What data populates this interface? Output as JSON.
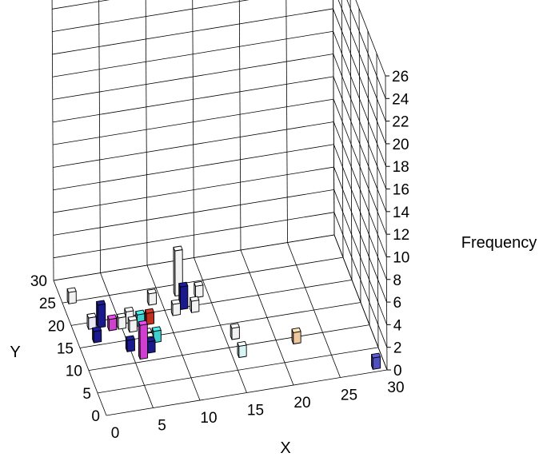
{
  "chart_data": {
    "type": "bar3d",
    "title": "",
    "xlabel": "X",
    "ylabel": "Y",
    "zlabel": "Frequency",
    "xlim": [
      0,
      30
    ],
    "ylim": [
      0,
      30
    ],
    "zlim": [
      0,
      26
    ],
    "x_ticks": [
      "0",
      "5",
      "10",
      "15",
      "20",
      "25",
      "30"
    ],
    "y_ticks": [
      "0",
      "5",
      "10",
      "15",
      "20",
      "25",
      "30"
    ],
    "z_ticks": [
      "0",
      "2",
      "4",
      "6",
      "8",
      "10",
      "12",
      "14",
      "16",
      "18",
      "20",
      "22",
      "24",
      "26"
    ],
    "grid": true,
    "bars": [
      {
        "x": 1,
        "y": 25,
        "z": 1,
        "color": "#f2f2f2"
      },
      {
        "x": 2,
        "y": 16,
        "z": 1,
        "color": "#1a1a8c"
      },
      {
        "x": 3,
        "y": 19,
        "z": 2,
        "color": "#1a1a8c"
      },
      {
        "x": 2,
        "y": 19,
        "z": 1,
        "color": "#e8e8f8"
      },
      {
        "x": 4,
        "y": 18,
        "z": 1,
        "color": "#d040d0"
      },
      {
        "x": 5,
        "y": 18,
        "z": 1,
        "color": "#f2f2f2"
      },
      {
        "x": 6,
        "y": 19,
        "z": 1,
        "color": "#f2f2f2"
      },
      {
        "x": 6,
        "y": 17,
        "z": 1,
        "color": "#f2f2f2"
      },
      {
        "x": 7,
        "y": 18,
        "z": 1,
        "color": "#40d0d0"
      },
      {
        "x": 8,
        "y": 18,
        "z": 1,
        "color": "#c03020"
      },
      {
        "x": 5,
        "y": 13,
        "z": 1,
        "color": "#1a1a8c"
      },
      {
        "x": 6,
        "y": 11,
        "z": 3,
        "color": "#d040d0"
      },
      {
        "x": 7,
        "y": 12,
        "z": 1,
        "color": "#1a1a8c"
      },
      {
        "x": 7,
        "y": 13,
        "z": 1,
        "color": "#f2f2f2"
      },
      {
        "x": 8,
        "y": 14,
        "z": 1,
        "color": "#40d0d0"
      },
      {
        "x": 7,
        "y": 14,
        "z": 1,
        "color": "#e8e8f8"
      },
      {
        "x": 9,
        "y": 22,
        "z": 1,
        "color": "#f2f2f2"
      },
      {
        "x": 11,
        "y": 19,
        "z": 1,
        "color": "#f2f2f2"
      },
      {
        "x": 12,
        "y": 20,
        "z": 2,
        "color": "#1a1a8c"
      },
      {
        "x": 12,
        "y": 23,
        "z": 4,
        "color": "#f2f2f2"
      },
      {
        "x": 13,
        "y": 19,
        "z": 1,
        "color": "#f2f2f2"
      },
      {
        "x": 14,
        "y": 22,
        "z": 1,
        "color": "#f2f2f2"
      },
      {
        "x": 16,
        "y": 12,
        "z": 1,
        "color": "#f2f2f2"
      },
      {
        "x": 16,
        "y": 8,
        "z": 1,
        "color": "#d8f4f4"
      },
      {
        "x": 22,
        "y": 9,
        "z": 1,
        "color": "#f0c8a0"
      },
      {
        "x": 29,
        "y": 1,
        "z": 1,
        "color": "#5050c0"
      }
    ]
  }
}
